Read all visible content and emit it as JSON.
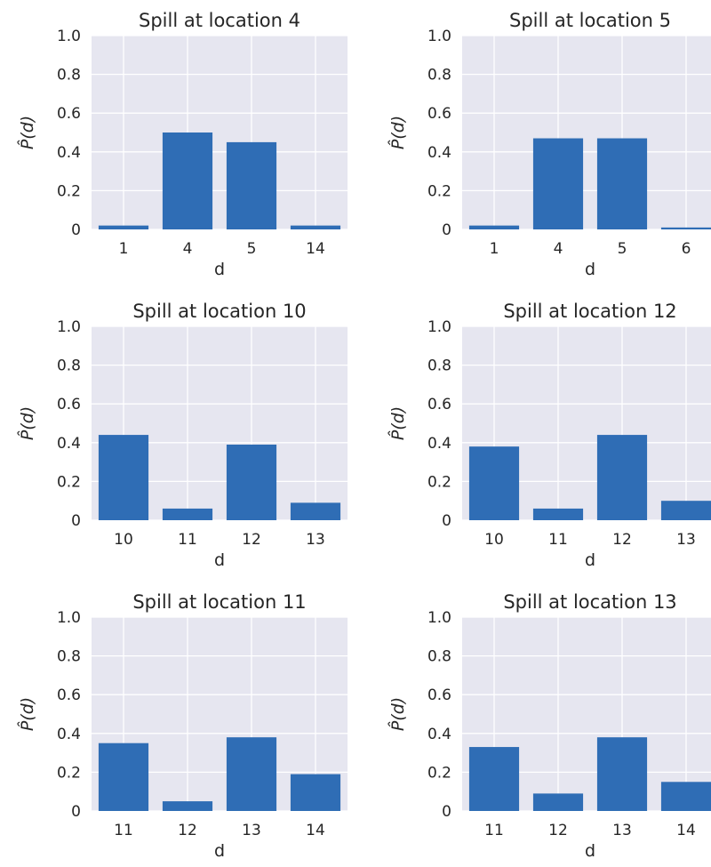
{
  "colors": {
    "bar": "#2f6db5",
    "plot_bg": "#e6e6f0",
    "grid": "#ffffff",
    "text": "#262626"
  },
  "chart_data": [
    {
      "type": "bar",
      "title": "Spill at location 4",
      "xlabel": "d",
      "ylabel": "P̂(d)",
      "categories": [
        "1",
        "4",
        "5",
        "14"
      ],
      "values": [
        0.02,
        0.5,
        0.45,
        0.02
      ],
      "ylim": [
        0,
        1.0
      ],
      "yticks": [
        "0",
        "0.2",
        "0.4",
        "0.6",
        "0.8",
        "1.0"
      ],
      "grid": true
    },
    {
      "type": "bar",
      "title": "Spill at location 5",
      "xlabel": "d",
      "ylabel": "P̂(d)",
      "categories": [
        "1",
        "4",
        "5",
        "6"
      ],
      "values": [
        0.02,
        0.47,
        0.47,
        0.01
      ],
      "ylim": [
        0,
        1.0
      ],
      "yticks": [
        "0",
        "0.2",
        "0.4",
        "0.6",
        "0.8",
        "1.0"
      ],
      "grid": true
    },
    {
      "type": "bar",
      "title": "Spill at location 10",
      "xlabel": "d",
      "ylabel": "P̂(d)",
      "categories": [
        "10",
        "11",
        "12",
        "13"
      ],
      "values": [
        0.44,
        0.06,
        0.39,
        0.09
      ],
      "ylim": [
        0,
        1.0
      ],
      "yticks": [
        "0",
        "0.2",
        "0.4",
        "0.6",
        "0.8",
        "1.0"
      ],
      "grid": true
    },
    {
      "type": "bar",
      "title": "Spill at location 12",
      "xlabel": "d",
      "ylabel": "P̂(d)",
      "categories": [
        "10",
        "11",
        "12",
        "13"
      ],
      "values": [
        0.38,
        0.06,
        0.44,
        0.1
      ],
      "ylim": [
        0,
        1.0
      ],
      "yticks": [
        "0",
        "0.2",
        "0.4",
        "0.6",
        "0.8",
        "1.0"
      ],
      "grid": true
    },
    {
      "type": "bar",
      "title": "Spill at location 11",
      "xlabel": "d",
      "ylabel": "P̂(d)",
      "categories": [
        "11",
        "12",
        "13",
        "14"
      ],
      "values": [
        0.35,
        0.05,
        0.38,
        0.19
      ],
      "ylim": [
        0,
        1.0
      ],
      "yticks": [
        "0",
        "0.2",
        "0.4",
        "0.6",
        "0.8",
        "1.0"
      ],
      "grid": true
    },
    {
      "type": "bar",
      "title": "Spill at location 13",
      "xlabel": "d",
      "ylabel": "P̂(d)",
      "categories": [
        "11",
        "12",
        "13",
        "14"
      ],
      "values": [
        0.33,
        0.09,
        0.38,
        0.15
      ],
      "ylim": [
        0,
        1.0
      ],
      "yticks": [
        "0",
        "0.2",
        "0.4",
        "0.6",
        "0.8",
        "1.0"
      ],
      "grid": true
    }
  ]
}
